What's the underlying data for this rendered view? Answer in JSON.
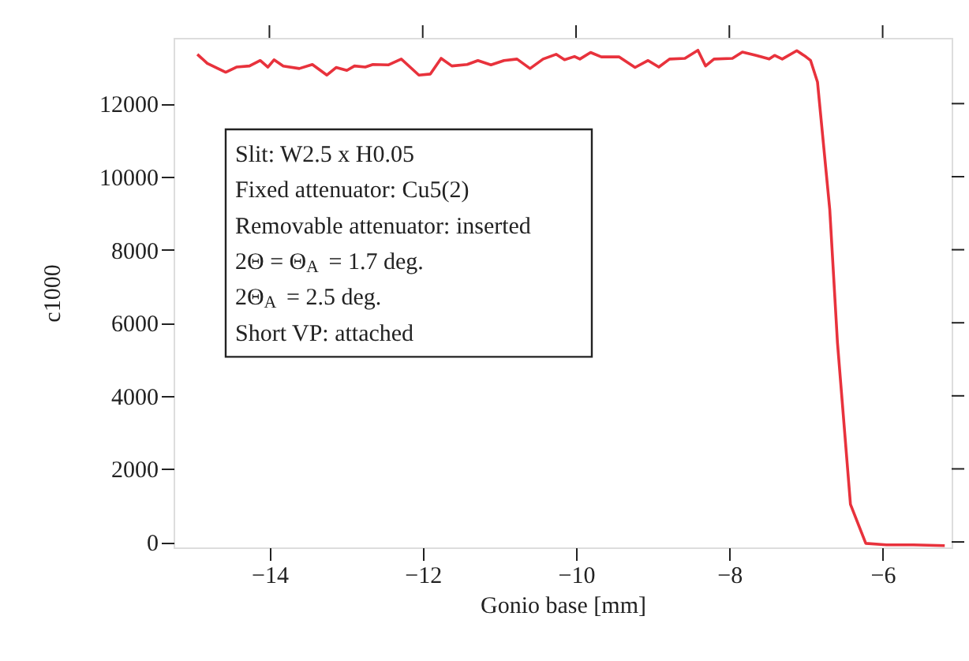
{
  "chart_data": {
    "type": "line",
    "xlabel": "Gonio base [mm]",
    "ylabel": "c1000",
    "xlim": [
      -15.25,
      -5.1
    ],
    "ylim": [
      -150,
      13800
    ],
    "xticks": [
      -14,
      -12,
      -10,
      -8,
      -6
    ],
    "yticks": [
      0,
      2000,
      4000,
      6000,
      8000,
      10000,
      12000
    ],
    "grid": false,
    "marker": "none",
    "line_style": "solid",
    "annotations": [
      "Slit: W2.5 x H0.05",
      "Fixed attenuator: Cu5(2)",
      "Removable attenuator: inserted",
      "2Θ = Θ$_{A}$ = 1.7 deg.",
      "2Θ$_{A}$ = 2.5 deg.",
      "Short VP: attached"
    ],
    "series": [
      {
        "color": "#e8323c",
        "x": [
          -14.94,
          -14.81,
          -14.57,
          -14.43,
          -14.26,
          -14.12,
          -14.02,
          -13.94,
          -13.82,
          -13.61,
          -13.44,
          -13.25,
          -13.13,
          -12.99,
          -12.89,
          -12.75,
          -12.65,
          -12.45,
          -12.28,
          -12.05,
          -11.9,
          -11.76,
          -11.62,
          -11.42,
          -11.28,
          -11.11,
          -10.94,
          -10.77,
          -10.6,
          -10.43,
          -10.26,
          -10.15,
          -10.02,
          -9.95,
          -9.81,
          -9.67,
          -9.44,
          -9.23,
          -9.06,
          -8.92,
          -8.78,
          -8.58,
          -8.41,
          -8.31,
          -8.2,
          -7.96,
          -7.83,
          -7.65,
          -7.48,
          -7.41,
          -7.31,
          -7.12,
          -7.0,
          -6.94,
          -6.85,
          -6.69,
          -6.59,
          -6.42,
          -6.22,
          -5.95,
          -5.6,
          -5.19
        ],
        "values": [
          13350,
          13100,
          12860,
          13000,
          13030,
          13180,
          13000,
          13200,
          13030,
          12960,
          13070,
          12780,
          12990,
          12910,
          13030,
          13000,
          13070,
          13060,
          13220,
          12780,
          12810,
          13240,
          13030,
          13070,
          13180,
          13060,
          13180,
          13220,
          12960,
          13220,
          13350,
          13200,
          13290,
          13220,
          13400,
          13280,
          13280,
          12990,
          13180,
          13000,
          13220,
          13240,
          13460,
          13030,
          13220,
          13240,
          13410,
          13320,
          13220,
          13320,
          13220,
          13450,
          13280,
          13180,
          12590,
          9100,
          5470,
          1030,
          -40,
          -80,
          -80,
          -100
        ]
      }
    ]
  }
}
